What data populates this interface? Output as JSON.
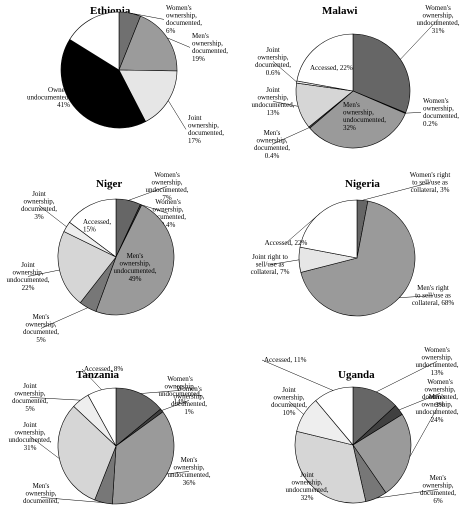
{
  "chart_data": [
    {
      "type": "pie",
      "title": "Ethiopia",
      "slices": [
        {
          "label": [
            "Women's",
            "ownership,",
            "documented,",
            "6%"
          ],
          "value": 6,
          "fill": "#707070"
        },
        {
          "label": [
            "Men's",
            "ownership,",
            "documented,",
            "19%"
          ],
          "value": 19,
          "fill": "#9b9b9b"
        },
        {
          "label": [
            "Joint",
            "ownership,",
            "documented,",
            "17%"
          ],
          "value": 17,
          "fill": "#e6e6e6"
        },
        {
          "label": [
            "Owned,",
            "undocumented,",
            "41%"
          ],
          "value": 41,
          "fill": "#000000"
        },
        {
          "label": [
            "Accessed,",
            "16%"
          ],
          "value": 16,
          "fill": "#ffffff"
        }
      ]
    },
    {
      "type": "pie",
      "title": "Malawi",
      "slices": [
        {
          "label": [
            "Women's",
            "ownership,",
            "undocumented,",
            "31%"
          ],
          "value": 31,
          "fill": "#666666"
        },
        {
          "label": [
            "Women's",
            "ownership,",
            "documented,",
            "0.2%"
          ],
          "value": 0.2,
          "fill": "#404040"
        },
        {
          "label": [
            "Men's",
            "ownership,",
            "undocumented,",
            "32%"
          ],
          "value": 32,
          "fill": "#9a9a9a"
        },
        {
          "label": [
            "Men's",
            "ownership,",
            "documented,",
            "0.4%"
          ],
          "value": 0.4,
          "fill": "#555555"
        },
        {
          "label": [
            "Joint",
            "ownership,",
            "undocumented,",
            "13%"
          ],
          "value": 13,
          "fill": "#d6d6d6"
        },
        {
          "label": [
            "Joint",
            "ownership,",
            "documented,",
            "0.6%"
          ],
          "value": 0.6,
          "fill": "#eeeeee"
        },
        {
          "label": [
            "Accessed, 22%"
          ],
          "value": 22,
          "fill": "#ffffff"
        }
      ]
    },
    {
      "type": "pie",
      "title": "Niger",
      "slices": [
        {
          "label": [
            "Women's",
            "ownership,",
            "undocumented,",
            "7%"
          ],
          "value": 7,
          "fill": "#666666"
        },
        {
          "label": [
            "Women's",
            "ownership,",
            "documented,",
            "0.4%"
          ],
          "value": 0.4,
          "fill": "#404040"
        },
        {
          "label": [
            "Men's",
            "ownership,",
            "undocumented,",
            "49%"
          ],
          "value": 49,
          "fill": "#9a9a9a"
        },
        {
          "label": [
            "Men's",
            "ownership,",
            "documented,",
            "5%"
          ],
          "value": 5,
          "fill": "#777777"
        },
        {
          "label": [
            "Joint",
            "ownership,",
            "undocumented,",
            "22%"
          ],
          "value": 22,
          "fill": "#d6d6d6"
        },
        {
          "label": [
            "Joint",
            "ownership,",
            "documented,",
            "3%"
          ],
          "value": 3,
          "fill": "#eeeeee"
        },
        {
          "label": [
            "Accessed,",
            "15%"
          ],
          "value": 15,
          "fill": "#ffffff"
        }
      ]
    },
    {
      "type": "pie",
      "title": "Nigeria",
      "slices": [
        {
          "label": [
            "Women's right",
            "to sell/use as",
            "collateral,  3%"
          ],
          "value": 3,
          "fill": "#666666"
        },
        {
          "label": [
            "Men's right",
            "to sell/use as",
            "collateral, 68%"
          ],
          "value": 68,
          "fill": "#9a9a9a"
        },
        {
          "label": [
            "Joint right to",
            "sell/use as",
            "collateral,  7%"
          ],
          "value": 7,
          "fill": "#e6e6e6"
        },
        {
          "label": [
            "Accessed, 22%"
          ],
          "value": 22,
          "fill": "#ffffff"
        }
      ]
    },
    {
      "type": "pie",
      "title": "Tanzania",
      "slices": [
        {
          "label": [
            "Women's",
            "ownership,",
            "undocumented,",
            "14%"
          ],
          "value": 14,
          "fill": "#666666"
        },
        {
          "label": [
            "Women's",
            "ownership,",
            "documented,",
            "1%"
          ],
          "value": 1,
          "fill": "#404040"
        },
        {
          "label": [
            "Men's",
            "ownership,",
            "undocumented,",
            "36%"
          ],
          "value": 36,
          "fill": "#9a9a9a"
        },
        {
          "label": [
            "Men's",
            "ownership,",
            "documented,",
            "5%"
          ],
          "value": 5,
          "fill": "#777777"
        },
        {
          "label": [
            "Joint",
            "ownership,",
            "undocumented,",
            "31%"
          ],
          "value": 31,
          "fill": "#d6d6d6"
        },
        {
          "label": [
            "Joint",
            "ownership,",
            "documented,",
            "5%"
          ],
          "value": 5,
          "fill": "#eeeeee"
        },
        {
          "label": [
            "Accessed, 8%"
          ],
          "value": 8,
          "fill": "#ffffff"
        }
      ]
    },
    {
      "type": "pie",
      "title": "Uganda",
      "slices": [
        {
          "label": [
            "Women's",
            "ownership,",
            "undocumented,",
            "13%"
          ],
          "value": 13,
          "fill": "#666666"
        },
        {
          "label": [
            "Women's",
            "ownership,",
            "documented,",
            "3%"
          ],
          "value": 3,
          "fill": "#404040"
        },
        {
          "label": [
            "Men's",
            "ownership,",
            "undocumented,",
            "24%"
          ],
          "value": 24,
          "fill": "#9a9a9a"
        },
        {
          "label": [
            "Men's",
            "ownership,",
            "documented,",
            "6%"
          ],
          "value": 6,
          "fill": "#777777"
        },
        {
          "label": [
            "Joint",
            "ownership,",
            "undocumented,",
            "32%"
          ],
          "value": 32,
          "fill": "#d6d6d6"
        },
        {
          "label": [
            "Joint",
            "ownership,",
            "documented,",
            "10%"
          ],
          "value": 10,
          "fill": "#eeeeee"
        },
        {
          "label": [
            "Accessed, 11%"
          ],
          "value": 11,
          "fill": "#ffffff"
        }
      ]
    }
  ]
}
